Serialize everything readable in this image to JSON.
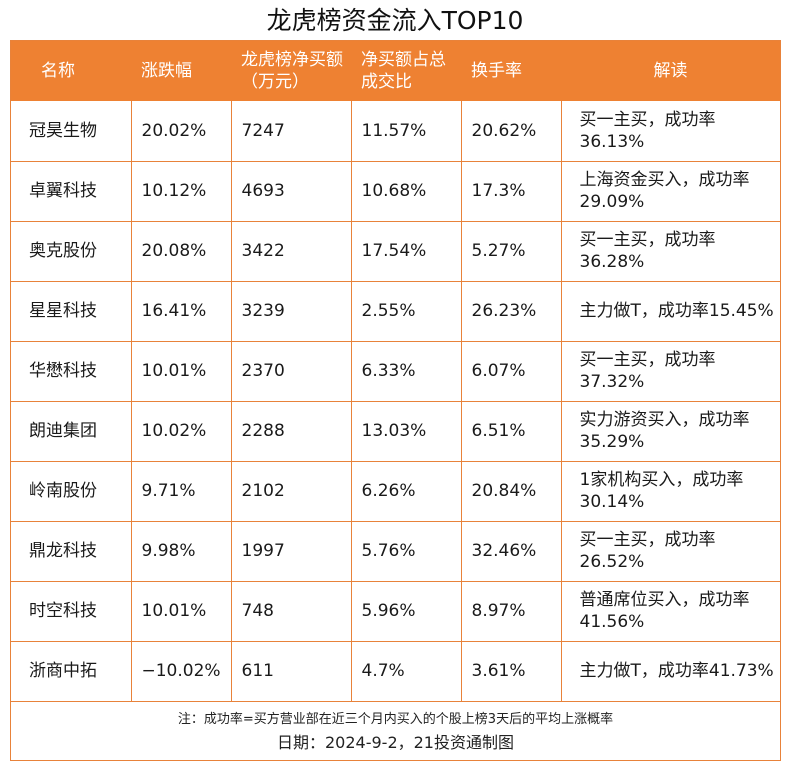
{
  "title": "龙虎榜资金流入TOP10",
  "headers": [
    "名称",
    "涨跌幅",
    "龙虎榜净买额（万元）",
    "净买额占总成交比",
    "换手率",
    "解读"
  ],
  "rows": [
    {
      "name": "冠昊生物",
      "change": "20.02%",
      "net_buy": "7247",
      "ratio": "11.57%",
      "turnover": "20.62%",
      "note": "买一主买，成功率36.13%"
    },
    {
      "name": "卓翼科技",
      "change": "10.12%",
      "net_buy": "4693",
      "ratio": "10.68%",
      "turnover": "17.3%",
      "note": "上海资金买入，成功率29.09%"
    },
    {
      "name": "奥克股份",
      "change": "20.08%",
      "net_buy": "3422",
      "ratio": "17.54%",
      "turnover": "5.27%",
      "note": "买一主买，成功率36.28%"
    },
    {
      "name": "星星科技",
      "change": "16.41%",
      "net_buy": "3239",
      "ratio": "2.55%",
      "turnover": "26.23%",
      "note": "主力做T，成功率15.45%"
    },
    {
      "name": "华懋科技",
      "change": "10.01%",
      "net_buy": "2370",
      "ratio": "6.33%",
      "turnover": "6.07%",
      "note": "买一主买，成功率37.32%"
    },
    {
      "name": "朗迪集团",
      "change": "10.02%",
      "net_buy": "2288",
      "ratio": "13.03%",
      "turnover": "6.51%",
      "note": "实力游资买入，成功率35.29%"
    },
    {
      "name": "岭南股份",
      "change": "9.71%",
      "net_buy": "2102",
      "ratio": "6.26%",
      "turnover": "20.84%",
      "note": "1家机构买入，成功率30.14%"
    },
    {
      "name": "鼎龙科技",
      "change": "9.98%",
      "net_buy": "1997",
      "ratio": "5.76%",
      "turnover": "32.46%",
      "note": "买一主买，成功率26.52%"
    },
    {
      "name": "时空科技",
      "change": "10.01%",
      "net_buy": "748",
      "ratio": "5.96%",
      "turnover": "8.97%",
      "note": "普通席位买入，成功率41.56%"
    },
    {
      "name": "浙商中拓",
      "change": "−10.02%",
      "net_buy": "611",
      "ratio": "4.7%",
      "turnover": "3.61%",
      "note": "主力做T，成功率41.73%"
    }
  ],
  "footnote": "注：成功率=买方营业部在近三个月内买入的个股上榜3天后的平均上涨概率",
  "date_line": "日期：2024-9-2，21投资通制图"
}
